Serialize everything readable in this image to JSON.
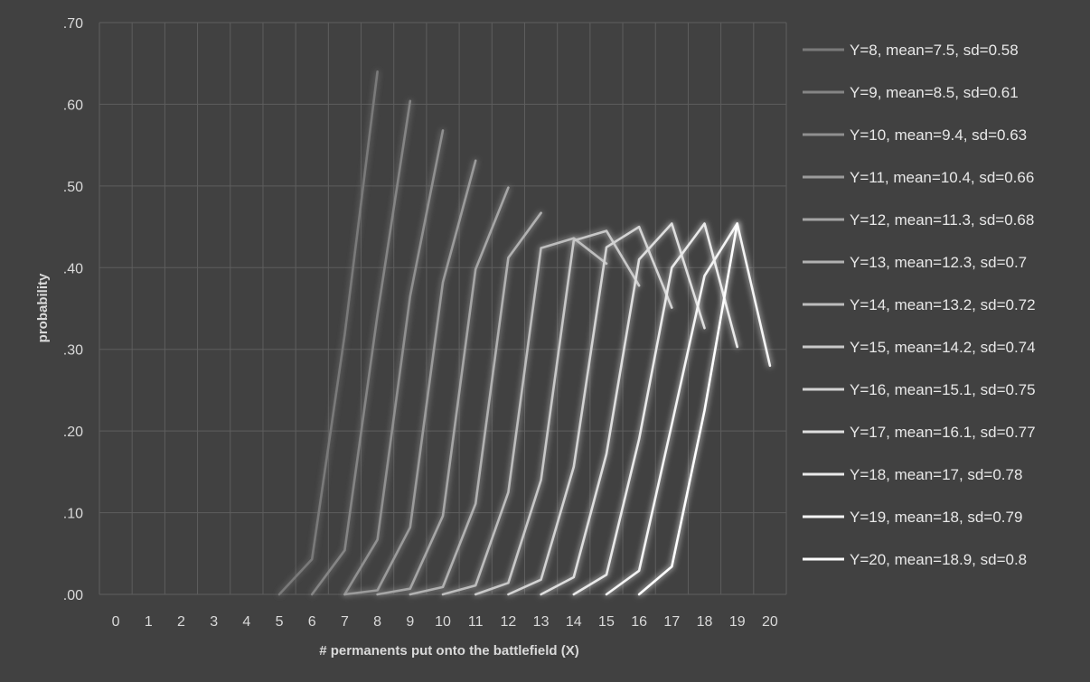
{
  "chart_data": {
    "type": "line",
    "xlabel": "# permanents put onto the battlefield (X)",
    "ylabel": "probability",
    "x_ticks": [
      "0",
      "1",
      "2",
      "3",
      "4",
      "5",
      "6",
      "7",
      "8",
      "9",
      "10",
      "11",
      "12",
      "13",
      "14",
      "15",
      "16",
      "17",
      "18",
      "19",
      "20"
    ],
    "y_ticks": [
      ".00",
      ".10",
      ".20",
      ".30",
      ".40",
      ".50",
      ".60",
      ".70"
    ],
    "xlim": [
      0,
      20
    ],
    "ylim": [
      0,
      0.7
    ],
    "grid": true,
    "legend_position": "right",
    "colors": {
      "background": "#414141",
      "grid": "#5e5e5e",
      "text": "#d9d9d9",
      "series_start": "#7a7a7a",
      "series_end": "#ffffff"
    },
    "series": [
      {
        "name": "Y=8, mean=7.5, sd=0.58",
        "x": [
          5,
          6,
          7,
          8
        ],
        "y": [
          0.0,
          0.043,
          0.318,
          0.64
        ]
      },
      {
        "name": "Y=9, mean=8.5, sd=0.61",
        "x": [
          6,
          7,
          8,
          9
        ],
        "y": [
          0.0,
          0.054,
          0.342,
          0.604
        ]
      },
      {
        "name": "Y=10, mean=9.4, sd=0.63",
        "x": [
          7,
          8,
          9,
          10
        ],
        "y": [
          0.0,
          0.067,
          0.365,
          0.568
        ]
      },
      {
        "name": "Y=11, mean=10.4, sd=0.66",
        "x": [
          7,
          8,
          9,
          10,
          11
        ],
        "y": [
          0.0,
          0.005,
          0.082,
          0.382,
          0.531
        ]
      },
      {
        "name": "Y=12, mean=11.3, sd=0.68",
        "x": [
          8,
          9,
          10,
          11,
          12
        ],
        "y": [
          0.0,
          0.007,
          0.096,
          0.398,
          0.498
        ]
      },
      {
        "name": "Y=13, mean=12.3, sd=0.7",
        "x": [
          9,
          10,
          11,
          12,
          13
        ],
        "y": [
          0.0,
          0.009,
          0.111,
          0.412,
          0.467
        ]
      },
      {
        "name": "Y=14, mean=13.2, sd=0.72",
        "x": [
          10,
          11,
          12,
          13,
          14,
          15
        ],
        "y": [
          0.0,
          0.011,
          0.125,
          0.424,
          0.436,
          0.405
        ]
      },
      {
        "name": "Y=15, mean=14.2, sd=0.74",
        "x": [
          11,
          12,
          13,
          14,
          15,
          16
        ],
        "y": [
          0.0,
          0.014,
          0.14,
          0.433,
          0.445,
          0.378
        ]
      },
      {
        "name": "Y=16, mean=15.1, sd=0.75",
        "x": [
          12,
          13,
          14,
          15,
          16,
          17
        ],
        "y": [
          0.0,
          0.018,
          0.156,
          0.425,
          0.45,
          0.351
        ]
      },
      {
        "name": "Y=17, mean=16.1, sd=0.77",
        "x": [
          13,
          14,
          15,
          16,
          17,
          18
        ],
        "y": [
          0.0,
          0.021,
          0.172,
          0.41,
          0.454,
          0.326
        ]
      },
      {
        "name": "Y=18, mean=17, sd=0.78",
        "x": [
          14,
          15,
          16,
          17,
          18,
          19
        ],
        "y": [
          0.0,
          0.024,
          0.19,
          0.4,
          0.454,
          0.303
        ]
      },
      {
        "name": "Y=19, mean=18, sd=0.79",
        "x": [
          15,
          16,
          17,
          18,
          19,
          20
        ],
        "y": [
          0.0,
          0.029,
          0.208,
          0.39,
          0.454,
          0.28
        ]
      },
      {
        "name": "Y=20, mean=18.9, sd=0.8",
        "x": [
          16,
          17,
          18,
          19
        ],
        "y": [
          0.0,
          0.034,
          0.225,
          0.454
        ]
      }
    ]
  }
}
